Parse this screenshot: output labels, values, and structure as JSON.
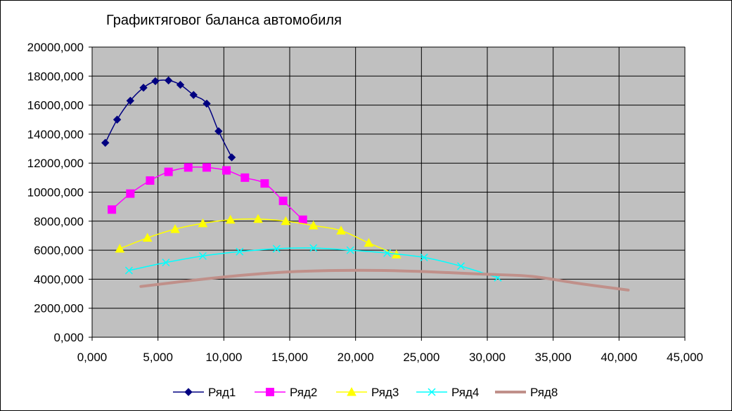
{
  "chart_data": {
    "type": "line",
    "title": "Графиктяговог баланса автомобиля",
    "xlabel": "",
    "ylabel": "",
    "xlim": [
      0,
      45
    ],
    "ylim": [
      0,
      20000
    ],
    "x_ticks": [
      "0,000",
      "5,000",
      "10,000",
      "15,000",
      "20,000",
      "25,000",
      "30,000",
      "35,000",
      "40,000",
      "45,000"
    ],
    "y_ticks": [
      "0,000",
      "2000,000",
      "4000,000",
      "6000,000",
      "8000,000",
      "10000,000",
      "12000,000",
      "14000,000",
      "16000,000",
      "18000,000",
      "20000,000"
    ],
    "plot_background": "#c0c0c0",
    "grid": true,
    "legend_position": "bottom",
    "series": [
      {
        "name": "Ряд1",
        "color": "#000080",
        "marker": "diamond",
        "x": [
          1.0,
          1.9,
          2.9,
          3.9,
          4.8,
          5.8,
          6.7,
          7.7,
          8.7,
          9.6,
          10.6
        ],
        "y": [
          13400,
          15000,
          16300,
          17200,
          17650,
          17700,
          17400,
          16700,
          16100,
          14200,
          12400
        ]
      },
      {
        "name": "Ряд2",
        "color": "#ff00ff",
        "marker": "square",
        "x": [
          1.5,
          2.9,
          4.4,
          5.8,
          7.3,
          8.7,
          10.2,
          11.6,
          13.1,
          14.5,
          16.0
        ],
        "y": [
          8800,
          9900,
          10800,
          11400,
          11700,
          11700,
          11500,
          11000,
          10600,
          9400,
          8100
        ]
      },
      {
        "name": "Ряд3",
        "color": "#ffff00",
        "marker": "triangle",
        "x": [
          2.1,
          4.2,
          6.3,
          8.4,
          10.5,
          12.6,
          14.7,
          16.8,
          18.9,
          21.0,
          23.1
        ],
        "y": [
          6100,
          6850,
          7450,
          7850,
          8100,
          8150,
          8000,
          7700,
          7350,
          6500,
          5700
        ]
      },
      {
        "name": "Ряд4",
        "color": "#00ffff",
        "marker": "x",
        "x": [
          2.8,
          5.6,
          8.4,
          11.2,
          14.0,
          16.8,
          19.6,
          22.4,
          25.2,
          28.0,
          30.8
        ],
        "y": [
          4600,
          5150,
          5600,
          5900,
          6100,
          6150,
          6000,
          5800,
          5500,
          4900,
          4100
        ]
      },
      {
        "name": "Ряд8",
        "color": "#c0908a",
        "marker": "none",
        "x": [
          3.7,
          7.4,
          11.1,
          14.8,
          18.5,
          22.2,
          25.9,
          29.6,
          33.3,
          37.0,
          40.7
        ],
        "y": [
          3500,
          3900,
          4250,
          4500,
          4600,
          4600,
          4500,
          4350,
          4200,
          3700,
          3250
        ]
      }
    ]
  }
}
